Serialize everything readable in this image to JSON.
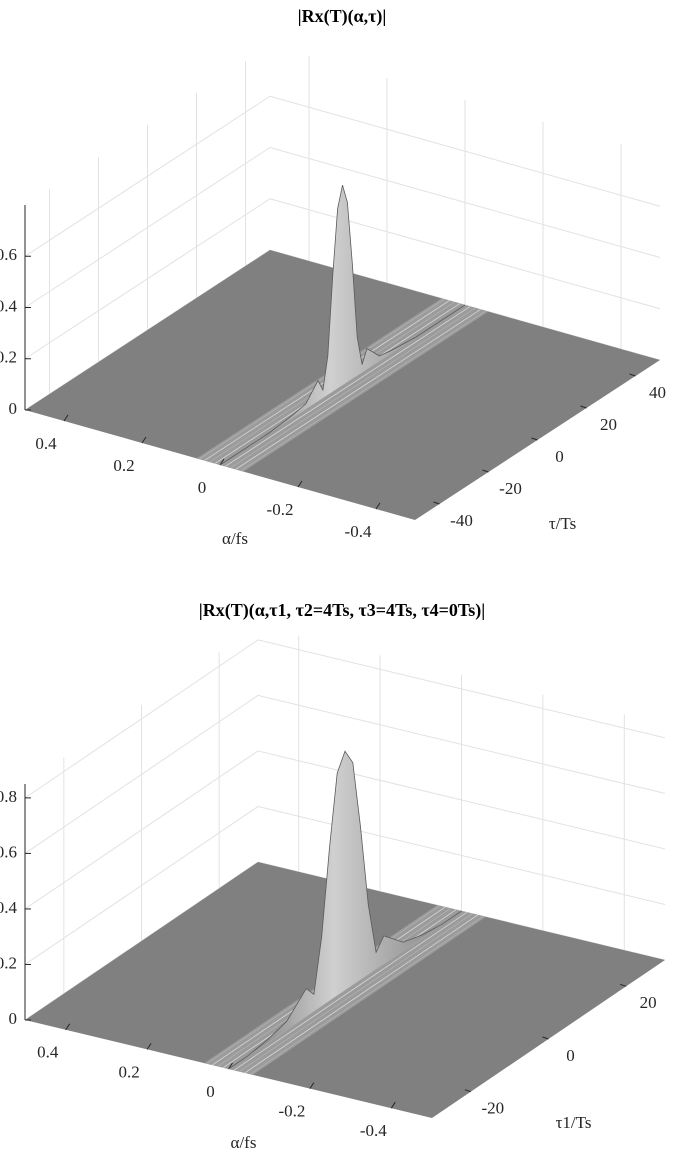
{
  "chart_data": [
    {
      "type": "surface",
      "title": "|Rx(T)(α,τ)|",
      "xlabel": "α/fs",
      "ylabel": "τ/Ts",
      "xlim": [
        -0.5,
        0.5
      ],
      "xticks": [
        -0.4,
        -0.2,
        0,
        0.2,
        0.4
      ],
      "ylim": [
        -50,
        50
      ],
      "yticks": [
        -40,
        -20,
        0,
        20,
        40
      ],
      "zlim": [
        0,
        0.8
      ],
      "zticks": [
        0,
        0.2,
        0.4,
        0.6
      ],
      "grid": true,
      "color": "#808080",
      "ridge": {
        "alpha": 0,
        "x": [
          -50,
          -40,
          -30,
          -20,
          -15,
          -10,
          -8,
          -6,
          -4,
          -2,
          0,
          2,
          4,
          6,
          8,
          10,
          15,
          20,
          30,
          40,
          50
        ],
        "values": [
          0,
          0,
          0,
          0.01,
          0.02,
          0.08,
          0.03,
          0.15,
          0.45,
          0.7,
          0.78,
          0.7,
          0.45,
          0.15,
          0.03,
          0.08,
          0.02,
          0.01,
          0,
          0,
          0
        ]
      }
    },
    {
      "type": "surface",
      "title": "|Rx(T)(α,τ1, τ2=4Ts, τ3=4Ts, τ4=0Ts)|",
      "xlabel": "α/fs",
      "ylabel": "τ1/Ts",
      "xlim": [
        -0.5,
        0.5
      ],
      "xticks": [
        -0.4,
        -0.2,
        0,
        0.2,
        0.4
      ],
      "ylim": [
        -30,
        30
      ],
      "yticks": [
        -20,
        0,
        20
      ],
      "zlim": [
        0,
        0.85
      ],
      "zticks": [
        0,
        0.2,
        0.4,
        0.6,
        0.8
      ],
      "grid": true,
      "color": "#808080",
      "ridge": {
        "alpha": 0,
        "x": [
          -30,
          -25,
          -20,
          -15,
          -10,
          -8,
          -6,
          -4,
          -2,
          0,
          2,
          4,
          6,
          8,
          10,
          15,
          20,
          25,
          30
        ],
        "values": [
          0,
          0,
          0.01,
          0.03,
          0.1,
          0.06,
          0.25,
          0.55,
          0.8,
          0.86,
          0.8,
          0.55,
          0.25,
          0.06,
          0.1,
          0.03,
          0.01,
          0,
          0
        ]
      }
    }
  ]
}
